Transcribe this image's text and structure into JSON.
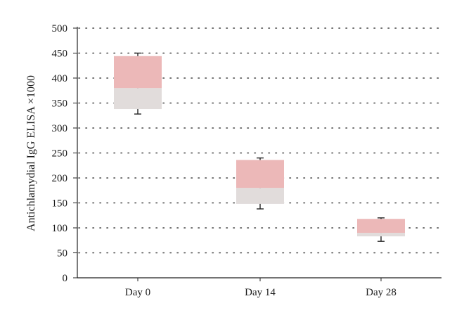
{
  "chart_data": {
    "type": "box",
    "title": "",
    "xlabel": "",
    "ylabel": "Antichlamydial IgG ELISA ×1000",
    "ylim": [
      0,
      500
    ],
    "yticks": [
      0,
      50,
      100,
      150,
      200,
      250,
      300,
      350,
      400,
      450,
      500
    ],
    "grid": "horizontal-dotted",
    "categories": [
      "Day 0",
      "Day 14",
      "Day 28"
    ],
    "boxes": [
      {
        "category": "Day 0",
        "min": 328,
        "q1": 338,
        "median": 380,
        "q3": 444,
        "max": 450
      },
      {
        "category": "Day 14",
        "min": 138,
        "q1": 148,
        "median": 180,
        "q3": 236,
        "max": 240
      },
      {
        "category": "Day 28",
        "min": 73,
        "q1": 83,
        "median": 90,
        "q3": 118,
        "max": 120
      }
    ],
    "colors": {
      "upper_box": "#ecb8b8",
      "lower_box": "#e1dcdb",
      "whisker": "#222222",
      "grid": "#444444",
      "axis": "#222222"
    }
  }
}
